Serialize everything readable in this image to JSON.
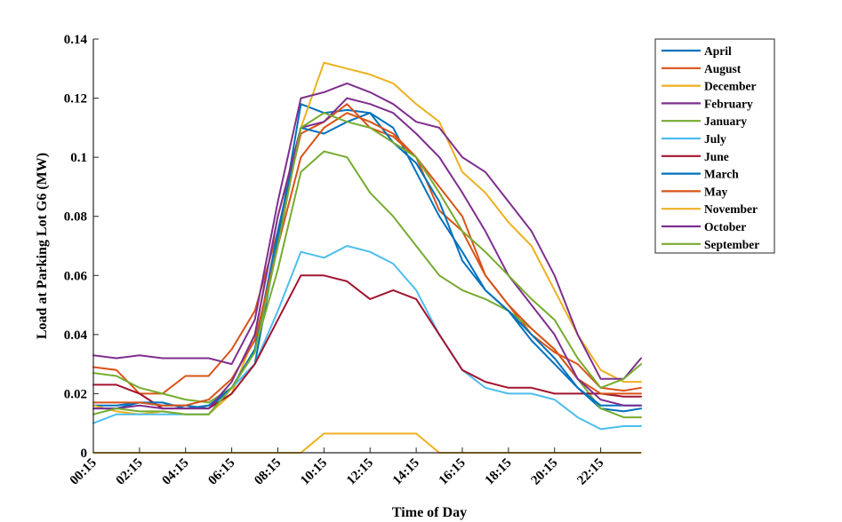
{
  "chart_data": {
    "type": "line",
    "title": "",
    "xlabel": "Time of Day",
    "ylabel": "Load at Parking Lot G6  (MW)",
    "ylim": [
      0,
      0.14
    ],
    "xlim": [
      0.25,
      24
    ],
    "y_ticks": [
      0,
      0.02,
      0.04,
      0.06,
      0.08,
      0.1,
      0.12,
      0.14
    ],
    "y_tick_labels": [
      "0",
      "0.02",
      "0.04",
      "0.06",
      "0.08",
      "0.1",
      "0.12",
      "0.14"
    ],
    "x_ticks": [
      0.25,
      2.25,
      4.25,
      6.25,
      8.25,
      10.25,
      12.25,
      14.25,
      16.25,
      18.25,
      20.25,
      22.25
    ],
    "x_tick_labels": [
      "00:15",
      "02:15",
      "04:15",
      "06:15",
      "08:15",
      "10:15",
      "12:15",
      "14:15",
      "16:15",
      "18:15",
      "20:15",
      "22:15"
    ],
    "grid": false,
    "legend_position": "outside-right",
    "x": [
      0.25,
      1.25,
      2.25,
      3.25,
      4.25,
      5.25,
      6.25,
      7.25,
      8.25,
      9.25,
      10.25,
      11.25,
      12.25,
      13.25,
      14.25,
      15.25,
      16.25,
      17.25,
      18.25,
      19.25,
      20.25,
      21.25,
      22.25,
      23.25,
      24
    ],
    "series": [
      {
        "name": "April",
        "color": "#0072BD",
        "values": [
          0.016,
          0.016,
          0.017,
          0.016,
          0.016,
          0.015,
          0.022,
          0.03,
          0.072,
          0.118,
          0.115,
          0.116,
          0.115,
          0.11,
          0.095,
          0.08,
          0.068,
          0.055,
          0.048,
          0.038,
          0.03,
          0.022,
          0.015,
          0.014,
          0.015
        ]
      },
      {
        "name": "August",
        "color": "#D95319",
        "values": [
          0.029,
          0.028,
          0.02,
          0.02,
          0.026,
          0.026,
          0.035,
          0.048,
          0.075,
          0.108,
          0.112,
          0.118,
          0.11,
          0.107,
          0.1,
          0.082,
          0.075,
          0.06,
          0.05,
          0.04,
          0.034,
          0.03,
          0.022,
          0.021,
          0.022
        ]
      },
      {
        "name": "December",
        "color": "#EDB120",
        "values": [
          0.016,
          0.014,
          0.013,
          0.014,
          0.013,
          0.013,
          0.02,
          0.04,
          0.08,
          0.11,
          0.132,
          0.13,
          0.128,
          0.125,
          0.118,
          0.112,
          0.095,
          0.088,
          0.078,
          0.07,
          0.055,
          0.04,
          0.028,
          0.024,
          0.024
        ]
      },
      {
        "name": "February",
        "color": "#7E2F8E",
        "values": [
          0.033,
          0.032,
          0.033,
          0.032,
          0.032,
          0.032,
          0.03,
          0.045,
          0.085,
          0.12,
          0.122,
          0.125,
          0.122,
          0.118,
          0.112,
          0.11,
          0.1,
          0.095,
          0.085,
          0.075,
          0.06,
          0.04,
          0.025,
          0.025,
          0.032
        ]
      },
      {
        "name": "January",
        "color": "#77AC30",
        "values": [
          0.027,
          0.026,
          0.022,
          0.02,
          0.018,
          0.017,
          0.022,
          0.035,
          0.062,
          0.095,
          0.102,
          0.1,
          0.088,
          0.08,
          0.07,
          0.06,
          0.055,
          0.052,
          0.048,
          0.042,
          0.035,
          0.025,
          0.015,
          0.012,
          0.012
        ]
      },
      {
        "name": "July",
        "color": "#4DBEEE",
        "values": [
          0.01,
          0.013,
          0.013,
          0.013,
          0.013,
          0.013,
          0.022,
          0.03,
          0.048,
          0.068,
          0.066,
          0.07,
          0.068,
          0.064,
          0.055,
          0.04,
          0.028,
          0.022,
          0.02,
          0.02,
          0.018,
          0.012,
          0.008,
          0.009,
          0.009
        ]
      },
      {
        "name": "June",
        "color": "#A2142F",
        "values": [
          0.023,
          0.023,
          0.02,
          0.015,
          0.015,
          0.015,
          0.02,
          0.03,
          0.045,
          0.06,
          0.06,
          0.058,
          0.052,
          0.055,
          0.052,
          0.04,
          0.028,
          0.024,
          0.022,
          0.022,
          0.02,
          0.02,
          0.02,
          0.019,
          0.019
        ]
      },
      {
        "name": "March",
        "color": "#0072BD",
        "values": [
          0.015,
          0.015,
          0.017,
          0.017,
          0.015,
          0.016,
          0.022,
          0.035,
          0.075,
          0.11,
          0.108,
          0.112,
          0.115,
          0.105,
          0.098,
          0.085,
          0.065,
          0.055,
          0.048,
          0.04,
          0.032,
          0.022,
          0.016,
          0.016,
          0.016
        ]
      },
      {
        "name": "May",
        "color": "#D95319",
        "values": [
          0.017,
          0.017,
          0.017,
          0.016,
          0.016,
          0.018,
          0.025,
          0.038,
          0.07,
          0.1,
          0.11,
          0.115,
          0.112,
          0.108,
          0.1,
          0.09,
          0.08,
          0.06,
          0.05,
          0.042,
          0.035,
          0.025,
          0.02,
          0.02,
          0.02
        ]
      },
      {
        "name": "November",
        "color": "#EDB120",
        "values": [
          0,
          0,
          0,
          0,
          0,
          0,
          0,
          0,
          0,
          0,
          0.0065,
          0.0065,
          0.0065,
          0.0065,
          0.0065,
          0,
          0,
          0,
          0,
          0,
          0,
          0,
          0,
          0,
          0
        ]
      },
      {
        "name": "October",
        "color": "#7E2F8E",
        "values": [
          0.015,
          0.015,
          0.016,
          0.015,
          0.015,
          0.015,
          0.024,
          0.04,
          0.08,
          0.11,
          0.112,
          0.12,
          0.118,
          0.115,
          0.108,
          0.1,
          0.088,
          0.075,
          0.06,
          0.05,
          0.04,
          0.025,
          0.018,
          0.016,
          0.016
        ]
      },
      {
        "name": "September",
        "color": "#77AC30",
        "values": [
          0.013,
          0.015,
          0.014,
          0.014,
          0.013,
          0.013,
          0.022,
          0.034,
          0.07,
          0.11,
          0.115,
          0.112,
          0.11,
          0.105,
          0.1,
          0.088,
          0.075,
          0.068,
          0.06,
          0.052,
          0.045,
          0.032,
          0.022,
          0.025,
          0.03
        ]
      }
    ]
  }
}
